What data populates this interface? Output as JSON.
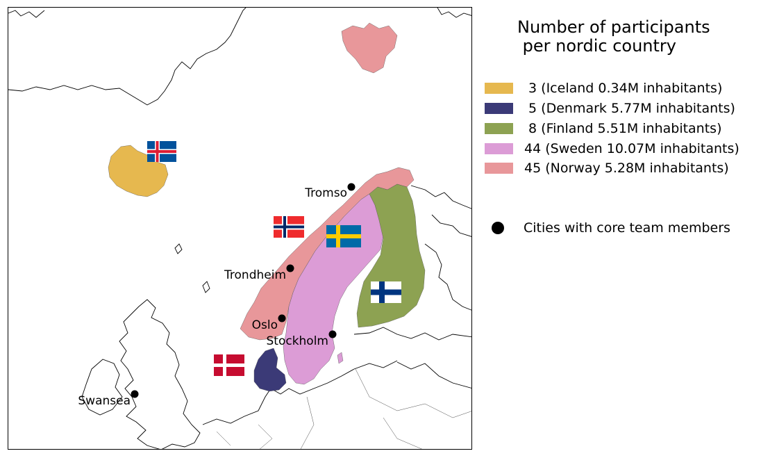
{
  "legend": {
    "title": "Number of participants\n per nordic country",
    "entries": [
      {
        "label": " 3 (Iceland 0.34M inhabitants)",
        "color": "#e6b84f",
        "country": "Iceland",
        "participants": 3
      },
      {
        "label": " 5 (Denmark 5.77M inhabitants)",
        "color": "#3b3a77",
        "country": "Denmark",
        "participants": 5
      },
      {
        "label": " 8 (Finland 5.51M inhabitants)",
        "color": "#8da252",
        "country": "Finland",
        "participants": 8
      },
      {
        "label": "44 (Sweden 10.07M inhabitants)",
        "color": "#dc9cd6",
        "country": "Sweden",
        "participants": 44
      },
      {
        "label": "45 (Norway 5.28M inhabitants)",
        "color": "#e8979a",
        "country": "Norway",
        "participants": 45
      }
    ],
    "cities_label": "Cities with core team members"
  },
  "cities": {
    "tromso": "Tromso",
    "trondheim": "Trondheim",
    "oslo": "Oslo",
    "stockholm": "Stockholm",
    "swansea": "Swansea"
  },
  "colors": {
    "iceland": "#e6b84f",
    "denmark": "#3b3a77",
    "finland": "#8da252",
    "sweden": "#dc9cd6",
    "norway": "#e8979a",
    "city_marker": "#000000"
  },
  "flags": [
    "iceland-flag",
    "norway-flag",
    "sweden-flag",
    "finland-flag",
    "denmark-flag"
  ]
}
